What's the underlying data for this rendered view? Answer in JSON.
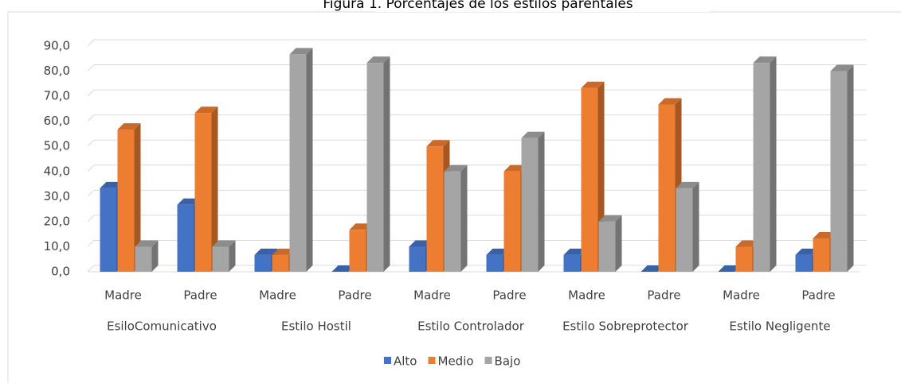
{
  "chart_data": {
    "type": "bar3d",
    "title": "Figura 1. Porcentajes de los estilos parentales",
    "categories": [
      "Madre",
      "Padre",
      "Madre",
      "Padre",
      "Madre",
      "Padre",
      "Madre",
      "Padre",
      "Madre",
      "Padre"
    ],
    "groups": [
      "EsiloComunicativo",
      "Estilo Hostil",
      "Estilo Controlador",
      "Estilo Sobreprotector",
      "Estilo Negligente"
    ],
    "series": [
      {
        "name": "Alto",
        "color": "#4472c4",
        "values": [
          33.3,
          26.7,
          6.7,
          0,
          10,
          6.7,
          6.7,
          0,
          0,
          6.7
        ]
      },
      {
        "name": "Medio",
        "color": "#ed7d31",
        "values": [
          56.7,
          63.3,
          6.7,
          16.7,
          50,
          40,
          73.3,
          66.7,
          10,
          13.3
        ]
      },
      {
        "name": "Bajo",
        "color": "#a5a5a5",
        "values": [
          10,
          10,
          86.7,
          83.3,
          40,
          53.3,
          20,
          33.3,
          83.3,
          80
        ]
      }
    ],
    "ylim": [
      0,
      90
    ],
    "yticks": [
      {
        "value": 0,
        "label": "0,0"
      },
      {
        "value": 10,
        "label": "10,0"
      },
      {
        "value": 20,
        "label": "20,0"
      },
      {
        "value": 30,
        "label": "30,0"
      },
      {
        "value": 40,
        "label": "40,0"
      },
      {
        "value": 50,
        "label": "50,0"
      },
      {
        "value": 60,
        "label": "60,0"
      },
      {
        "value": 70,
        "label": "70,0"
      },
      {
        "value": 80,
        "label": "80,0"
      },
      {
        "value": 90,
        "label": "90,0"
      }
    ],
    "grid": true,
    "legend": "bottom"
  }
}
